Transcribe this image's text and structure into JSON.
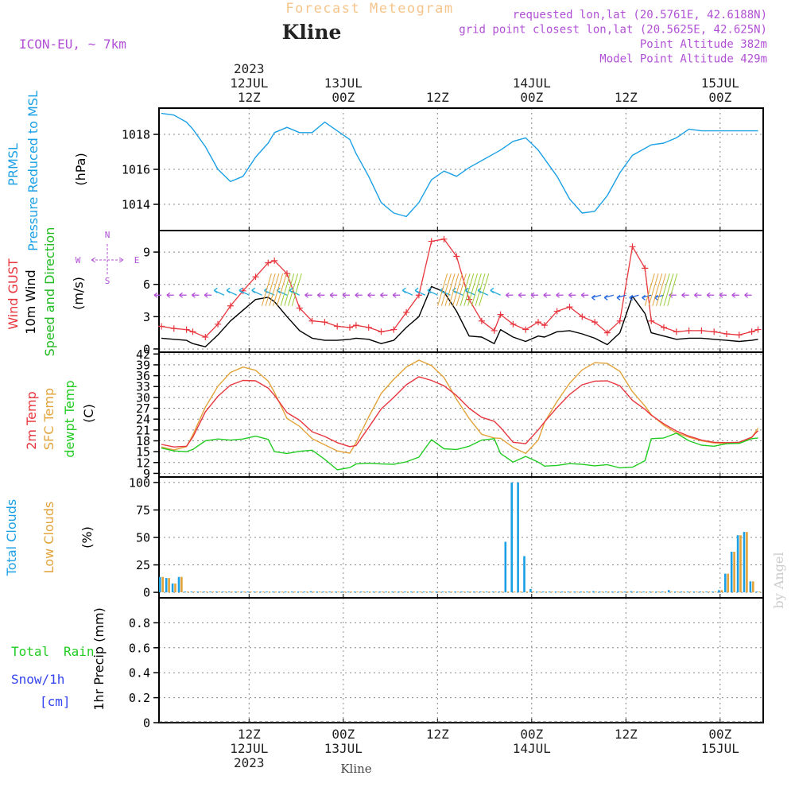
{
  "header": {
    "title": "Forecast Meteogram",
    "station": "Kline",
    "model": "ICON-EU, ~ 7km",
    "info": [
      "requested lon,lat (20.5761E, 42.6188N)",
      "grid point closest lon,lat (20.5625E, 42.625N)",
      "Point Altitude 382m",
      "Model Point Altitude 429m"
    ]
  },
  "time_axis": {
    "top_labels": [
      [
        "2023",
        "12JUL",
        "12Z"
      ],
      [
        "13JUL",
        "00Z"
      ],
      [
        "12Z"
      ],
      [
        "14JUL",
        "00Z"
      ],
      [
        "12Z"
      ],
      [
        "15JUL",
        "00Z"
      ]
    ],
    "bottom_labels": [
      [
        "12Z",
        "12JUL",
        "2023"
      ],
      [
        "00Z",
        "13JUL"
      ],
      [
        "12Z"
      ],
      [
        "00Z",
        "14JUL"
      ],
      [
        "12Z"
      ],
      [
        "00Z",
        "15JUL"
      ]
    ],
    "station_footer": "Kline"
  },
  "credit": "by Angel",
  "compass": {
    "n": "N",
    "s": "S",
    "w": "W",
    "e": "E"
  },
  "colors": {
    "pressure": "#1ba0e6",
    "gust": "#e8363e",
    "wind": "#000000",
    "dir": "#22bb22",
    "t2m": "#e8363e",
    "sfc": "#e2a33a",
    "dew": "#22cc22",
    "total_clouds": "#1ba0e6",
    "low_clouds": "#e2a33a",
    "rain": "#22cc22",
    "snow": "#3344ee",
    "purple": "#b150d6",
    "title": "#f5c48a"
  },
  "chart_data": [
    {
      "type": "line",
      "panel": "pressure",
      "ylabel": [
        "PRMSL",
        "Pressure Reduced to MSL",
        "(hPa)"
      ],
      "yticks": [
        "1014",
        "1016",
        "1018"
      ],
      "ylim": [
        1012.5,
        1019.5
      ],
      "grid": true,
      "x_hours": [
        0,
        2,
        4,
        5,
        7,
        9,
        11,
        13,
        15,
        17,
        18,
        20,
        22,
        24,
        26,
        28,
        30,
        31,
        33,
        35,
        37,
        39,
        41,
        43,
        45,
        47,
        49,
        51,
        53,
        54,
        56,
        58,
        60,
        61,
        63,
        65,
        67,
        69,
        71,
        73,
        75,
        77,
        78,
        80,
        82,
        84,
        86,
        88,
        90,
        92,
        94,
        95
      ],
      "series": [
        {
          "name": "",
          "values": [
            1019.2,
            1019.1,
            1018.7,
            1018.3,
            1017.3,
            1016.0,
            1015.3,
            1015.6,
            1016.7,
            1017.5,
            1018.1,
            1018.4,
            1018.1,
            1018.1,
            1018.7,
            1018.2,
            1017.7,
            1016.9,
            1015.6,
            1014.1,
            1013.5,
            1013.3,
            1014.1,
            1015.4,
            1015.9,
            1015.6,
            1016.1,
            1016.5,
            1016.9,
            1017.1,
            1017.6,
            1017.8,
            1017.1,
            1016.6,
            1015.6,
            1014.3,
            1013.5,
            1013.6,
            1014.5,
            1015.8,
            1016.8,
            1017.2,
            1017.4,
            1017.5,
            1017.8,
            1018.3,
            1018.2,
            1018.2,
            1018.2,
            1018.2,
            1018.2,
            1018.2
          ]
        }
      ]
    },
    {
      "type": "line",
      "panel": "wind",
      "ylabel": [
        "Wind GUST",
        "10m Wind",
        "Speed and Direction",
        "(m/s)"
      ],
      "yticks": [
        "0",
        "3",
        "6",
        "9"
      ],
      "ylim": [
        -0.3,
        11
      ],
      "grid": true,
      "x_hours": [
        0,
        2,
        4,
        5,
        7,
        9,
        11,
        13,
        15,
        17,
        18,
        20,
        22,
        24,
        26,
        28,
        30,
        31,
        33,
        35,
        37,
        39,
        41,
        43,
        45,
        47,
        49,
        51,
        53,
        54,
        56,
        58,
        60,
        61,
        63,
        65,
        67,
        69,
        71,
        73,
        75,
        77,
        78,
        80,
        82,
        84,
        86,
        88,
        90,
        92,
        94,
        95
      ],
      "series": [
        {
          "name": "Wind GUST",
          "values": [
            2.1,
            1.9,
            1.8,
            1.6,
            1.1,
            2.3,
            4.0,
            5.4,
            6.7,
            8.0,
            8.2,
            7.0,
            3.8,
            2.6,
            2.5,
            2.1,
            2.0,
            2.2,
            2.0,
            1.6,
            1.8,
            3.4,
            5.0,
            10.0,
            10.2,
            8.6,
            4.6,
            2.6,
            1.7,
            3.2,
            2.3,
            1.8,
            2.5,
            2.2,
            3.5,
            3.9,
            3.0,
            2.5,
            1.5,
            2.6,
            9.5,
            7.5,
            2.6,
            2.0,
            1.6,
            1.7,
            1.7,
            1.6,
            1.4,
            1.3,
            1.6,
            1.8
          ]
        },
        {
          "name": "10m Wind",
          "values": [
            1.0,
            0.9,
            0.8,
            0.5,
            0.2,
            1.3,
            2.6,
            3.6,
            4.6,
            4.8,
            4.4,
            3.0,
            1.7,
            1.0,
            0.8,
            0.8,
            0.9,
            1.0,
            0.9,
            0.5,
            0.8,
            2.0,
            3.0,
            5.8,
            5.3,
            3.5,
            1.2,
            1.1,
            0.5,
            1.8,
            1.1,
            0.7,
            1.2,
            1.1,
            1.6,
            1.7,
            1.4,
            1.0,
            0.4,
            1.5,
            4.9,
            3.3,
            1.5,
            1.2,
            0.9,
            1.0,
            1.0,
            0.9,
            0.8,
            0.7,
            0.8,
            0.9
          ]
        }
      ]
    },
    {
      "type": "line",
      "panel": "temperature",
      "ylabel": [
        "2m Temp",
        "SFC Temp",
        "dewpt Temp",
        "(C)"
      ],
      "yticks": [
        "9",
        "12",
        "15",
        "18",
        "21",
        "24",
        "27",
        "30",
        "33",
        "36",
        "39",
        "42"
      ],
      "ylim": [
        8,
        42.5
      ],
      "grid": true,
      "x_hours": [
        0,
        2,
        4,
        5,
        7,
        9,
        11,
        13,
        15,
        17,
        18,
        20,
        22,
        24,
        26,
        28,
        30,
        31,
        33,
        35,
        37,
        39,
        41,
        43,
        45,
        47,
        49,
        51,
        53,
        54,
        56,
        58,
        60,
        61,
        63,
        65,
        67,
        69,
        71,
        73,
        75,
        77,
        78,
        80,
        82,
        84,
        86,
        88,
        90,
        92,
        94,
        95
      ],
      "series": [
        {
          "name": "2m Temp",
          "values": [
            17.0,
            16.3,
            16.5,
            19.0,
            26.0,
            30.3,
            33.4,
            34.7,
            34.6,
            32.6,
            30.6,
            25.8,
            23.7,
            20.5,
            19.2,
            17.5,
            16.4,
            16.7,
            21.7,
            26.8,
            30.0,
            33.5,
            35.7,
            34.7,
            33.2,
            30.5,
            27.0,
            24.5,
            23.4,
            21.7,
            17.6,
            17.2,
            21.0,
            23.2,
            27.2,
            30.8,
            33.5,
            34.5,
            34.6,
            33.2,
            29.2,
            26.7,
            25.1,
            22.7,
            20.7,
            19.3,
            18.2,
            17.6,
            17.5,
            17.6,
            19.0,
            20.8
          ]
        },
        {
          "name": "SFC Temp",
          "values": [
            16.3,
            15.5,
            16.4,
            19.6,
            27.3,
            33.1,
            36.9,
            38.4,
            37.5,
            34.5,
            31.4,
            24.2,
            22.0,
            18.6,
            16.9,
            15.2,
            14.6,
            17.5,
            24.6,
            31.1,
            35.0,
            38.4,
            40.3,
            38.8,
            35.5,
            29.5,
            24.2,
            19.8,
            18.8,
            18.7,
            16.2,
            14.5,
            18.2,
            23.1,
            28.9,
            33.9,
            37.6,
            39.6,
            39.4,
            37.2,
            31.6,
            27.6,
            25.2,
            22.3,
            20.2,
            19.0,
            18.0,
            17.4,
            17.3,
            17.5,
            18.9,
            21.5
          ]
        },
        {
          "name": "dewpt Temp",
          "values": [
            16.0,
            15.2,
            15.0,
            15.6,
            18.0,
            18.5,
            18.2,
            18.5,
            19.3,
            18.4,
            15.0,
            14.5,
            15.1,
            15.4,
            12.9,
            10.0,
            10.6,
            11.6,
            11.8,
            11.6,
            11.5,
            12.2,
            13.5,
            18.3,
            15.8,
            15.6,
            16.5,
            18.2,
            18.6,
            14.5,
            12.1,
            13.7,
            12.1,
            11.0,
            11.2,
            11.7,
            11.5,
            11.1,
            11.4,
            10.5,
            10.7,
            12.5,
            18.6,
            18.8,
            20.1,
            18.0,
            16.8,
            16.5,
            17.2,
            17.3,
            18.6,
            18.8
          ]
        }
      ]
    },
    {
      "type": "bar",
      "panel": "clouds",
      "ylabel": [
        "Total Clouds",
        "Low Clouds",
        "(%)"
      ],
      "yticks": [
        "0",
        "25",
        "50",
        "75",
        "100"
      ],
      "ylim": [
        -5,
        105
      ],
      "grid": true,
      "x_hours": [
        0,
        1,
        2,
        3,
        4,
        5,
        6,
        7,
        8,
        9,
        10,
        11,
        12,
        13,
        14,
        15,
        16,
        17,
        18,
        19,
        20,
        21,
        22,
        23,
        24,
        25,
        26,
        27,
        28,
        29,
        30,
        31,
        32,
        33,
        34,
        35,
        36,
        37,
        38,
        39,
        40,
        41,
        42,
        43,
        44,
        45,
        46,
        47,
        48,
        49,
        50,
        51,
        52,
        53,
        54,
        55,
        56,
        57,
        58,
        59,
        60,
        61,
        62,
        63,
        64,
        65,
        66,
        67,
        68,
        69,
        70,
        71,
        72,
        73,
        74,
        75,
        76,
        77,
        78,
        79,
        80,
        81,
        82,
        83,
        84,
        85,
        86,
        87,
        88,
        89,
        90,
        91,
        92,
        93,
        94,
        95
      ],
      "series": [
        {
          "name": "Total Clouds",
          "values": [
            14,
            13,
            8,
            14,
            0,
            0,
            0,
            0,
            0,
            0,
            0,
            0,
            0,
            0,
            0,
            0,
            0,
            0,
            0,
            0,
            0,
            0,
            0,
            0,
            1,
            0,
            0,
            0,
            0,
            0,
            0,
            0,
            0,
            0,
            0,
            0,
            0,
            0,
            0,
            0,
            0,
            0,
            0,
            0,
            0,
            0,
            0,
            0,
            0,
            0,
            0,
            0,
            0,
            0,
            0,
            46,
            100,
            100,
            33,
            3,
            0,
            0,
            0,
            0,
            0,
            0,
            0,
            0,
            0,
            1,
            0,
            0,
            0,
            0,
            0,
            1,
            0,
            0,
            0,
            0,
            0,
            2,
            0,
            0,
            0,
            0,
            0,
            0,
            0,
            2,
            17,
            37,
            52,
            55,
            10,
            0
          ]
        },
        {
          "name": "Low Clouds",
          "values": [
            14,
            13,
            8,
            14,
            0,
            0,
            0,
            0,
            0,
            0,
            0,
            0,
            0,
            0,
            0,
            0,
            0,
            0,
            0,
            0,
            0,
            0,
            0,
            0,
            0,
            0,
            0,
            0,
            0,
            0,
            0,
            0,
            0,
            0,
            0,
            0,
            0,
            0,
            0,
            0,
            0,
            0,
            0,
            0,
            0,
            0,
            0,
            0,
            0,
            0,
            0,
            0,
            0,
            0,
            0,
            0,
            0,
            0,
            0,
            0,
            0,
            0,
            0,
            0,
            0,
            0,
            0,
            0,
            0,
            0,
            0,
            0,
            0,
            0,
            0,
            0,
            0,
            0,
            0,
            0,
            0,
            0,
            0,
            0,
            0,
            0,
            0,
            0,
            0,
            2,
            17,
            37,
            52,
            55,
            10,
            0
          ]
        }
      ]
    },
    {
      "type": "bar",
      "panel": "precip",
      "ylabel_left": [
        "Total",
        "Rain",
        "Snow/1h",
        "[cm]"
      ],
      "ylabel": [
        "1hr Precip (mm)"
      ],
      "yticks": [
        "0",
        "0.2",
        "0.4",
        "0.6",
        "0.8"
      ],
      "ylim": [
        0,
        1.0
      ],
      "grid": true,
      "series": [
        {
          "name": "Total",
          "values": []
        },
        {
          "name": "Rain",
          "values": []
        }
      ]
    }
  ]
}
